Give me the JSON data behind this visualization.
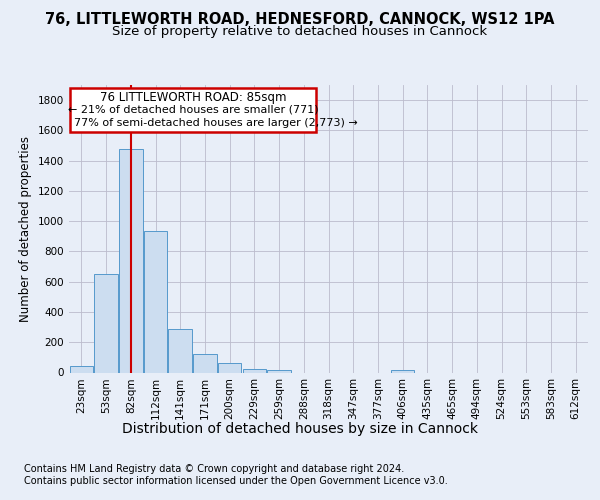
{
  "title1": "76, LITTLEWORTH ROAD, HEDNESFORD, CANNOCK, WS12 1PA",
  "title2": "Size of property relative to detached houses in Cannock",
  "xlabel": "Distribution of detached houses by size in Cannock",
  "ylabel": "Number of detached properties",
  "footnote1": "Contains HM Land Registry data © Crown copyright and database right 2024.",
  "footnote2": "Contains public sector information licensed under the Open Government Licence v3.0.",
  "annotation_line1": "76 LITTLEWORTH ROAD: 85sqm",
  "annotation_line2": "← 21% of detached houses are smaller (771)",
  "annotation_line3": "77% of semi-detached houses are larger (2,773) →",
  "bar_color": "#ccddf0",
  "bar_edge_color": "#5599cc",
  "vline_color": "#cc0000",
  "vline_x_idx": 2,
  "categories": [
    "23sqm",
    "53sqm",
    "82sqm",
    "112sqm",
    "141sqm",
    "171sqm",
    "200sqm",
    "229sqm",
    "259sqm",
    "288sqm",
    "318sqm",
    "347sqm",
    "377sqm",
    "406sqm",
    "435sqm",
    "465sqm",
    "494sqm",
    "524sqm",
    "553sqm",
    "583sqm",
    "612sqm"
  ],
  "values": [
    40,
    650,
    1475,
    935,
    290,
    125,
    65,
    25,
    15,
    0,
    0,
    0,
    0,
    15,
    0,
    0,
    0,
    0,
    0,
    0,
    0
  ],
  "ylim": [
    0,
    1900
  ],
  "yticks": [
    0,
    200,
    400,
    600,
    800,
    1000,
    1200,
    1400,
    1600,
    1800
  ],
  "background_color": "#e8eef8",
  "plot_bg_color": "#e8eef8",
  "grid_color": "#bbbbcc",
  "title1_fontsize": 10.5,
  "title2_fontsize": 9.5,
  "xlabel_fontsize": 10,
  "ylabel_fontsize": 8.5,
  "tick_fontsize": 7.5,
  "footnote_fontsize": 7,
  "annotation_fontsize": 8.5
}
